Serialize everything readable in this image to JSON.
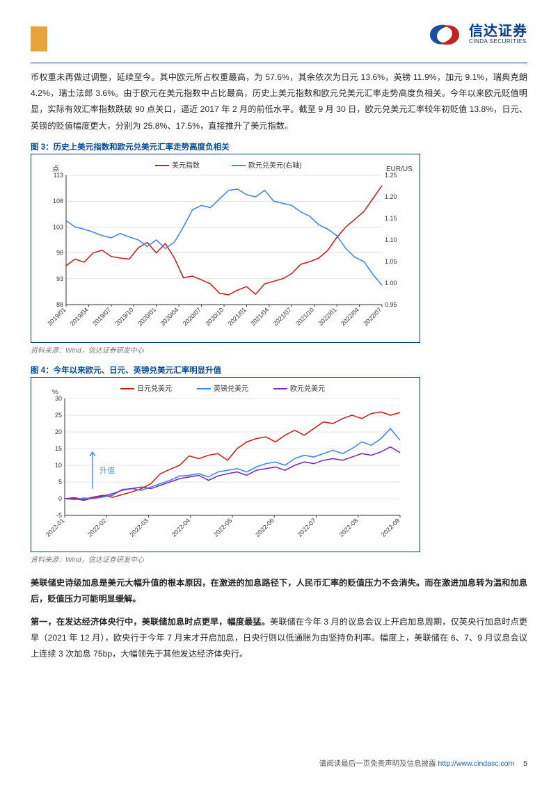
{
  "brand": {
    "cn": "信达证券",
    "en": "CINDA SECURITIES",
    "color": "#003a8c",
    "swirl_c1": "#1a4fa0",
    "swirl_c2": "#c5221f"
  },
  "orange_bar_color": "#e9a33b",
  "body_para1": "币权重未再做过调整，延续至今。其中欧元所占权重最高，为 57.6%，其余依次为日元 13.6%，英镑 11.9%，加元 9.1%，瑞典克朗 4.2%，瑞士法郎 3.6%。由于欧元在美元指数中占比最高，历史上美元指数和欧元兑美元汇率走势高度负相关。今年以来欧元贬值明显，实际有效汇率指数跌破 90 点关口，逼近 2017 年 2 月的前低水平。截至 9 月 30 日，欧元兑美元汇率较年初贬值 13.8%，日元、英镑的贬值幅度更大，分别为 25.8%、17.5%，直接推升了美元指数。",
  "figure3": {
    "title": "图 3：历史上美元指数和欧元兑美元汇率走势高度负相关",
    "source": "资料来源：Wind，信达证券研发中心",
    "yleft_label": "点",
    "yright_label": "EUR/USD",
    "legend": [
      "美元指数",
      "欧元兑美元(右轴)"
    ],
    "legend_colors": [
      "#c5221f",
      "#4285f4"
    ],
    "x_ticks": [
      "2019/01",
      "2019/04",
      "2019/07",
      "2019/10",
      "2020/01",
      "2020/04",
      "2020/07",
      "2020/10",
      "2021/01",
      "2021/04",
      "2021/07",
      "2021/10",
      "2022/01",
      "2022/04",
      "2022/07"
    ],
    "yleft": {
      "min": 88,
      "max": 113,
      "ticks": [
        88,
        93,
        98,
        103,
        108,
        113
      ]
    },
    "yright": {
      "min": 0.95,
      "max": 1.25,
      "ticks": [
        0.95,
        1.0,
        1.05,
        1.1,
        1.15,
        1.2,
        1.25
      ]
    },
    "series_dxy": {
      "color": "#c5221f",
      "width": 1.6,
      "y": [
        95.5,
        96.8,
        96.2,
        98.0,
        98.5,
        97.3,
        97.0,
        96.8,
        99.0,
        100.0,
        98.0,
        99.8,
        97.0,
        93.2,
        93.5,
        92.8,
        92.0,
        90.2,
        89.9,
        90.8,
        91.5,
        90.0,
        92.0,
        92.5,
        93.0,
        94.0,
        95.8,
        96.3,
        97.0,
        98.5,
        101.0,
        103.0,
        104.5,
        106.0,
        108.5,
        111.0
      ]
    },
    "series_eurusd": {
      "color": "#4285f4",
      "width": 1.6,
      "y": [
        1.145,
        1.13,
        1.125,
        1.118,
        1.11,
        1.105,
        1.115,
        1.107,
        1.1,
        1.085,
        1.1,
        1.08,
        1.095,
        1.13,
        1.17,
        1.18,
        1.175,
        1.195,
        1.215,
        1.218,
        1.205,
        1.2,
        1.215,
        1.19,
        1.185,
        1.18,
        1.165,
        1.155,
        1.135,
        1.125,
        1.11,
        1.08,
        1.06,
        1.05,
        1.02,
        0.995
      ]
    },
    "bg": "#ffffff",
    "grid_color": "#cfcfcf",
    "axis_color": "#333333",
    "tick_font": 9,
    "label_font": 10
  },
  "figure4": {
    "title": "图 4：今年以来欧元、日元、英镑兑美元汇率明显升值",
    "source": "资料来源：Wind，信达证券研发中心",
    "yleft_label": "%",
    "legend": [
      "日元兑美元",
      "英镑兑美元",
      "欧元兑美元"
    ],
    "legend_colors": [
      "#c5221f",
      "#4285f4",
      "#7b2cbf"
    ],
    "annotation": "升值",
    "annotation_color": "#4a90e2",
    "x_ticks": [
      "2022-01",
      "2022-02",
      "2022-03",
      "2022-04",
      "2022-05",
      "2022-06",
      "2022-07",
      "2022-08",
      "2022-09"
    ],
    "y": {
      "min": -5,
      "max": 30,
      "ticks": [
        -5,
        0,
        5,
        10,
        15,
        20,
        25,
        30
      ]
    },
    "series_jpy": {
      "color": "#c5221f",
      "width": 1.6,
      "y": [
        0,
        0.3,
        -0.2,
        0.5,
        1.0,
        0.4,
        1.2,
        2.0,
        3.0,
        4.5,
        7.5,
        8.8,
        10.0,
        12.8,
        12.0,
        13.0,
        13.5,
        11.5,
        15.0,
        17.0,
        18.0,
        18.5,
        17.0,
        19.0,
        20.5,
        19.0,
        21.0,
        23.0,
        22.5,
        24.0,
        25.0,
        24.0,
        25.5,
        26.0,
        25.0,
        25.8
      ]
    },
    "series_gbp": {
      "color": "#4285f4",
      "width": 1.6,
      "y": [
        0,
        -0.3,
        0.2,
        0.0,
        0.5,
        1.0,
        2.8,
        3.0,
        2.5,
        3.5,
        4.5,
        5.5,
        6.8,
        7.0,
        7.5,
        6.5,
        8.0,
        8.5,
        9.0,
        8.0,
        9.5,
        10.5,
        11.0,
        10.0,
        12.0,
        13.0,
        12.5,
        13.5,
        14.5,
        13.5,
        15.0,
        17.0,
        16.0,
        18.0,
        21.0,
        17.5
      ]
    },
    "series_eur": {
      "color": "#7b2cbf",
      "width": 1.6,
      "y": [
        0,
        0.0,
        -0.5,
        0.3,
        0.8,
        1.5,
        2.5,
        3.0,
        3.5,
        3.0,
        4.0,
        5.0,
        6.0,
        6.5,
        7.0,
        5.5,
        6.8,
        7.5,
        8.0,
        7.0,
        8.5,
        9.0,
        9.5,
        8.5,
        10.0,
        11.0,
        10.5,
        11.5,
        12.0,
        11.5,
        12.5,
        13.5,
        13.0,
        14.0,
        15.5,
        13.8
      ]
    },
    "bg": "#ffffff",
    "grid_color": "#cfcfcf",
    "axis_color": "#333333",
    "tick_font": 9,
    "label_font": 10
  },
  "body_para2_bold": "美联储史诗级加息是美元大幅升值的根本原因，在激进的加息路径下，人民币汇率的贬值压力不会消失。而在激进加息转为温和加息后，贬值压力可能明显缓解。",
  "body_para3_lead": "第一，在发达经济体央行中，美联储加息时点更早，幅度最猛。",
  "body_para3_rest": "美联储在今年 3 月的议息会议上开启加息周期，仅英央行加息时点更早（2021 年 12 月），欧央行于今年 7 月末才开启加息，日央行则以低通胀为由坚持负利率。幅度上，美联储在 6、7、9 月议息会议上连续 3 次加息 75bp，大幅领先于其他发达经济体央行。",
  "footer": {
    "text": "请阅读最后一页免责声明及信息披露",
    "url": "http://www.cindasc.com",
    "pageno": "5"
  }
}
